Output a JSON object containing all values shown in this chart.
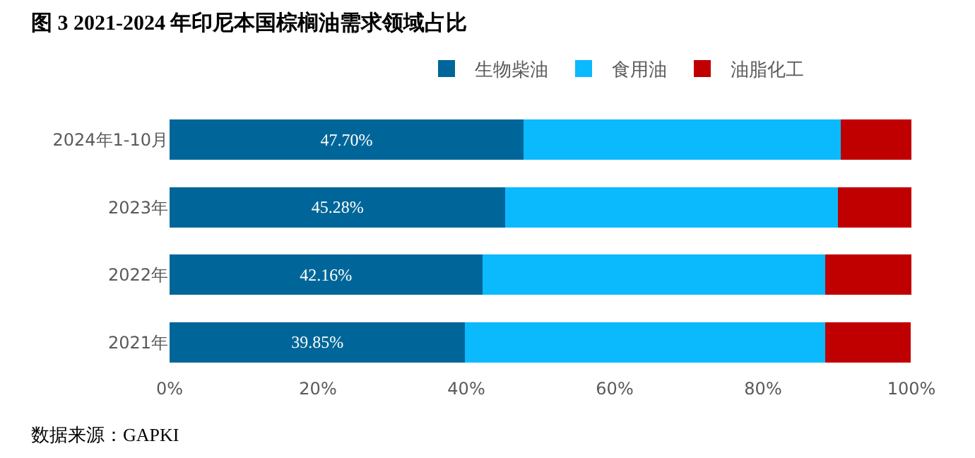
{
  "chart_data": {
    "type": "bar",
    "orientation": "horizontal",
    "stacked": true,
    "title": "图 3 2021-2024 年印尼本国棕榈油需求领域占比",
    "categories": [
      "2024年1-10月",
      "2023年",
      "2022年",
      "2021年"
    ],
    "series": [
      {
        "name": "生物柴油",
        "color": "#006699",
        "values": [
          47.7,
          45.28,
          42.16,
          39.85
        ],
        "value_labels": [
          "47.70%",
          "45.28%",
          "42.16%",
          "39.85%"
        ]
      },
      {
        "name": "食用油",
        "color": "#0bb9fd",
        "values": [
          42.8,
          44.8,
          46.2,
          48.5
        ]
      },
      {
        "name": "油脂化工",
        "color": "#c00000",
        "values": [
          9.5,
          9.9,
          11.6,
          11.6
        ]
      }
    ],
    "xlim": [
      0,
      100
    ],
    "xticks": [
      {
        "value": 0,
        "label": "0%"
      },
      {
        "value": 20,
        "label": "20%"
      },
      {
        "value": 40,
        "label": "40%"
      },
      {
        "value": 60,
        "label": "60%"
      },
      {
        "value": 80,
        "label": "80%"
      },
      {
        "value": 100,
        "label": "100%"
      }
    ],
    "legend": "top",
    "annotations": [
      "数据来源：GAPKI"
    ]
  }
}
